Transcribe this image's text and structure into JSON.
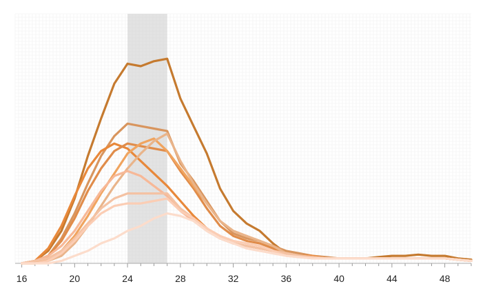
{
  "chart_data": {
    "type": "line",
    "title": "",
    "xlabel": "",
    "ylabel": "",
    "xlim": [
      15.5,
      50
    ],
    "ylim": [
      0,
      100
    ],
    "x_ticks": [
      "16",
      "20",
      "24",
      "28",
      "32",
      "36",
      "40",
      "44",
      "48"
    ],
    "grid": true,
    "legend": "none",
    "highlight_band": {
      "x_start": 24,
      "x_end": 27,
      "color": "#cccccc"
    },
    "series": [
      {
        "color": "#c57a2f",
        "x": [
          16,
          17,
          18,
          19,
          20,
          21,
          22,
          23,
          24,
          25,
          26,
          27,
          28,
          29,
          30,
          31,
          32,
          33,
          34,
          35,
          36,
          37,
          38,
          39,
          40,
          41,
          42,
          43,
          44,
          45,
          46,
          47,
          48,
          49,
          50
        ],
        "y": [
          0,
          1,
          5,
          13,
          26,
          43,
          58,
          72,
          80,
          79,
          81,
          82,
          66,
          55,
          44,
          30,
          21,
          16,
          13,
          8,
          4,
          3,
          2.5,
          2,
          2,
          2,
          2,
          2.5,
          3,
          3,
          3.5,
          3,
          3,
          2,
          1.5
        ]
      },
      {
        "color": "#d8955e",
        "x": [
          16,
          17,
          18,
          19,
          20,
          21,
          22,
          23,
          24,
          25,
          26,
          27,
          28,
          29,
          30,
          31,
          32,
          33,
          34,
          35,
          36,
          37,
          38,
          39,
          40,
          41,
          42,
          43,
          44,
          45,
          46,
          47,
          48,
          49,
          50
        ],
        "y": [
          0,
          1,
          3,
          10,
          20,
          32,
          43,
          51,
          56,
          55,
          54,
          53,
          40,
          33,
          25,
          17,
          12,
          10,
          9,
          7,
          5,
          4,
          3,
          2.5,
          2,
          2,
          2,
          2,
          2,
          2,
          2,
          2,
          2,
          1.5,
          1
        ]
      },
      {
        "color": "#e8883a",
        "x": [
          16,
          17,
          18,
          19,
          20,
          21,
          22,
          23,
          24,
          25,
          26,
          27,
          28,
          29,
          30,
          31,
          32,
          33,
          34,
          35,
          36,
          37,
          38,
          39,
          40,
          41,
          42,
          43,
          44,
          45,
          46,
          47,
          48,
          49,
          50
        ],
        "y": [
          0,
          1,
          6,
          15,
          27,
          38,
          45,
          48,
          46,
          41,
          36,
          31,
          25,
          19,
          14,
          10,
          8,
          7,
          6,
          5,
          4,
          3,
          3,
          2,
          2,
          2,
          2,
          2,
          2,
          2,
          2,
          2,
          2,
          1.5,
          1
        ]
      },
      {
        "color": "#e08c4a",
        "x": [
          16,
          17,
          18,
          19,
          20,
          21,
          22,
          23,
          24,
          25,
          26,
          27,
          28,
          29,
          30,
          31,
          32,
          33,
          34,
          35,
          36,
          37,
          38,
          39,
          40,
          41,
          42,
          43,
          44,
          45,
          46,
          47,
          48,
          49,
          50
        ],
        "y": [
          0,
          1,
          3,
          9,
          18,
          29,
          38,
          45,
          48,
          47,
          46,
          45,
          37,
          30,
          22,
          15,
          11,
          9,
          8,
          6,
          4,
          3,
          2.5,
          2,
          2,
          2,
          2,
          2,
          2,
          2,
          2,
          2,
          2,
          1.5,
          1
        ]
      },
      {
        "color": "#f0a45f",
        "x": [
          16,
          17,
          18,
          19,
          20,
          21,
          22,
          23,
          24,
          25,
          26,
          27,
          28,
          29,
          30,
          31,
          32,
          33,
          34,
          35,
          36,
          37,
          38,
          39,
          40,
          41,
          42,
          43,
          44,
          45,
          46,
          47,
          48,
          49,
          50
        ],
        "y": [
          0,
          0,
          2,
          5,
          11,
          19,
          28,
          36,
          44,
          48,
          50,
          45,
          38,
          31,
          24,
          17,
          13,
          11,
          9,
          7,
          4,
          3,
          2.5,
          2,
          2,
          2,
          2,
          2,
          2,
          2,
          2,
          2,
          2,
          1.5,
          1
        ]
      },
      {
        "color": "#e9b48a",
        "x": [
          16,
          17,
          18,
          19,
          20,
          21,
          22,
          23,
          24,
          25,
          26,
          27,
          28,
          29,
          30,
          31,
          32,
          33,
          34,
          35,
          36,
          37,
          38,
          39,
          40,
          41,
          42,
          43,
          44,
          45,
          46,
          47,
          48,
          49,
          50
        ],
        "y": [
          0,
          0,
          1,
          3,
          8,
          15,
          23,
          31,
          38,
          44,
          49,
          52,
          41,
          32,
          24,
          17,
          13,
          11,
          9,
          7,
          4,
          3,
          2.5,
          2,
          2,
          2,
          2,
          2,
          2,
          2,
          2,
          2,
          2,
          1.5,
          1
        ]
      },
      {
        "color": "#f7b897",
        "x": [
          16,
          17,
          18,
          19,
          20,
          21,
          22,
          23,
          24,
          25,
          26,
          27,
          28,
          29,
          30,
          31,
          32,
          33,
          34,
          35,
          36,
          37,
          38,
          39,
          40,
          41,
          42,
          43,
          44,
          45,
          46,
          47,
          48,
          49,
          50
        ],
        "y": [
          0,
          1,
          3,
          7,
          13,
          21,
          29,
          35,
          37,
          35,
          31,
          27,
          21,
          17,
          13,
          10,
          8,
          7,
          6,
          5,
          4,
          3,
          2.5,
          2,
          2,
          2,
          2,
          2,
          2,
          2,
          2,
          2,
          2,
          1.5,
          1
        ]
      },
      {
        "color": "#f4c2a3",
        "x": [
          16,
          17,
          18,
          19,
          20,
          21,
          22,
          23,
          24,
          25,
          26,
          27,
          28,
          29,
          30,
          31,
          32,
          33,
          34,
          35,
          36,
          37,
          38,
          39,
          40,
          41,
          42,
          43,
          44,
          45,
          46,
          47,
          48,
          49,
          50
        ],
        "y": [
          0,
          1,
          2,
          5,
          10,
          16,
          22,
          26,
          28,
          28,
          28,
          28,
          22,
          18,
          13,
          10,
          8,
          7,
          6,
          5,
          4,
          3,
          2.5,
          2,
          2,
          2,
          2,
          2,
          2,
          2,
          2,
          2,
          2,
          1.5,
          1
        ]
      },
      {
        "color": "#fbcdb4",
        "x": [
          16,
          17,
          18,
          19,
          20,
          21,
          22,
          23,
          24,
          25,
          26,
          27,
          28,
          29,
          30,
          31,
          32,
          33,
          34,
          35,
          36,
          37,
          38,
          39,
          40,
          41,
          42,
          43,
          44,
          45,
          46,
          47,
          48,
          49,
          50
        ],
        "y": [
          0,
          0,
          1,
          4,
          9,
          15,
          20,
          23,
          24,
          24,
          25,
          26,
          21,
          18,
          14,
          11,
          9,
          8,
          7,
          5,
          3,
          2.5,
          2,
          2,
          2,
          2,
          2,
          2,
          2,
          2,
          2,
          2,
          2,
          1.5,
          1
        ]
      },
      {
        "color": "#fcdccb",
        "x": [
          16,
          17,
          18,
          19,
          20,
          21,
          22,
          23,
          24,
          25,
          26,
          27,
          28,
          29,
          30,
          31,
          32,
          33,
          34,
          35,
          36,
          37,
          38,
          39,
          40,
          41,
          42,
          43,
          44,
          45,
          46,
          47,
          48,
          49,
          50
        ],
        "y": [
          0,
          0,
          0,
          1,
          3,
          5,
          8,
          10,
          13,
          15,
          18,
          20,
          19,
          17,
          13,
          10,
          8,
          6,
          5,
          4,
          3,
          2.5,
          2,
          2,
          2,
          2,
          2,
          2,
          2,
          2,
          2,
          2,
          2,
          1.5,
          1
        ]
      }
    ]
  }
}
